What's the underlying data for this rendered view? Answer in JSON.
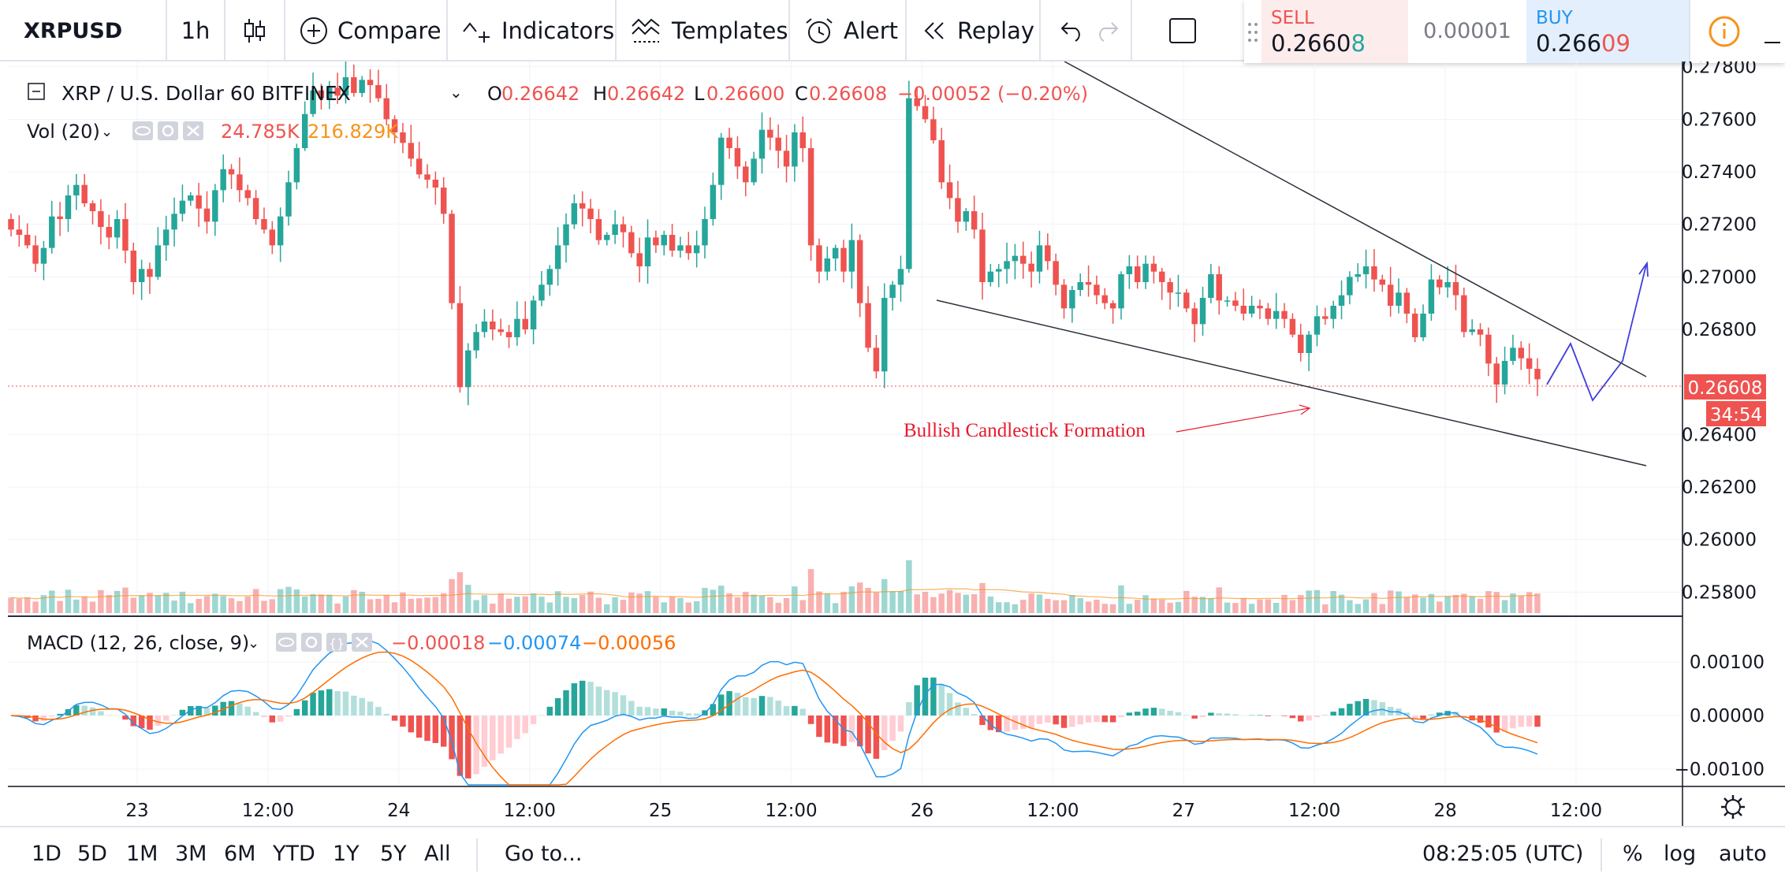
{
  "toolbar": {
    "symbol": "XRPUSD",
    "interval": "1h",
    "compare": "Compare",
    "indicators": "Indicators",
    "templates": "Templates",
    "alert": "Alert",
    "replay": "Replay"
  },
  "trade": {
    "sell_label": "SELL",
    "sell_main": "0.2660",
    "sell_last": "8",
    "spread": "0.00001",
    "buy_label": "BUY",
    "buy_main": "0.266",
    "buy_last": "09"
  },
  "legend": {
    "title": "XRP / U.S. Dollar  60  BITFINEX",
    "o_label": "O",
    "o": "0.26642",
    "h_label": "H",
    "h": "0.26642",
    "l_label": "L",
    "l": "0.26600",
    "c_label": "C",
    "c": "0.26608",
    "change": "−0.00052 (−0.20%)",
    "vol_label": "Vol (20)",
    "vol_value": "24.785K",
    "vol_ma": "216.829K",
    "macd_label": "MACD (12, 26, close, 9)",
    "macd_hist": "−0.00018",
    "macd_line": "−0.00074",
    "macd_signal": "−0.00056"
  },
  "price_axis": [
    "0.27800",
    "0.27600",
    "0.27400",
    "0.27200",
    "0.27000",
    "0.26800",
    "0.26400",
    "0.26200",
    "0.26000",
    "0.25800"
  ],
  "macd_axis": [
    "0.00100",
    "0.00000",
    "−0.00100"
  ],
  "time_axis": [
    "23",
    "12:00",
    "24",
    "12:00",
    "25",
    "12:00",
    "26",
    "12:00",
    "27",
    "12:00",
    "28",
    "12:00"
  ],
  "current_price": "0.26608",
  "countdown": "34:54",
  "annotation": "Bullish Candlestick Formation",
  "bottom": {
    "ranges": [
      "1D",
      "5D",
      "1M",
      "3M",
      "6M",
      "YTD",
      "1Y",
      "5Y",
      "All"
    ],
    "goto": "Go to...",
    "clock": "08:25:05 (UTC)",
    "percent": "%",
    "log": "log",
    "auto": "auto"
  },
  "colors": {
    "up": "#26a69a",
    "down": "#ef5350",
    "macd": "#2196f3",
    "signal": "#ff6d00",
    "annotation": "#e8192c",
    "projection": "#3f3fdc"
  },
  "chart_data": {
    "type": "candlestick",
    "symbol": "XRPUSD",
    "exchange": "BITFINEX",
    "interval": "60",
    "y_range": [
      0.2572,
      0.2782
    ],
    "x": [
      "23",
      "12:00",
      "24",
      "12:00",
      "25",
      "12:00",
      "26",
      "12:00",
      "27",
      "12:00",
      "28",
      "12:00"
    ],
    "closes": [
      0.2718,
      0.2716,
      0.2712,
      0.2705,
      0.2711,
      0.2723,
      0.2722,
      0.2731,
      0.2735,
      0.2728,
      0.2725,
      0.2719,
      0.2715,
      0.2722,
      0.271,
      0.2698,
      0.2703,
      0.27,
      0.2712,
      0.2718,
      0.2724,
      0.2729,
      0.2731,
      0.2726,
      0.2721,
      0.2733,
      0.2741,
      0.2739,
      0.2733,
      0.273,
      0.2722,
      0.2718,
      0.2712,
      0.2723,
      0.2736,
      0.2749,
      0.2762,
      0.2771,
      0.2768,
      0.2772,
      0.2769,
      0.2776,
      0.277,
      0.2775,
      0.2773,
      0.2768,
      0.276,
      0.2755,
      0.2751,
      0.2745,
      0.2739,
      0.2737,
      0.2734,
      0.2724,
      0.269,
      0.2658,
      0.2672,
      0.2679,
      0.2683,
      0.268,
      0.2679,
      0.2677,
      0.2684,
      0.268,
      0.2691,
      0.2697,
      0.2703,
      0.2712,
      0.272,
      0.2728,
      0.2726,
      0.2722,
      0.2714,
      0.2716,
      0.272,
      0.2717,
      0.2709,
      0.2704,
      0.2715,
      0.2712,
      0.2716,
      0.271,
      0.2712,
      0.2709,
      0.2712,
      0.2722,
      0.2735,
      0.2753,
      0.2749,
      0.2742,
      0.2736,
      0.2745,
      0.2756,
      0.2753,
      0.2748,
      0.2742,
      0.2755,
      0.2749,
      0.2712,
      0.2702,
      0.2707,
      0.2711,
      0.2702,
      0.2714,
      0.269,
      0.2673,
      0.2664,
      0.2692,
      0.2697,
      0.2703,
      0.2768,
      0.2765,
      0.276,
      0.2752,
      0.2736,
      0.273,
      0.2721,
      0.2725,
      0.2718,
      0.2698,
      0.2702,
      0.2703,
      0.2706,
      0.2708,
      0.2705,
      0.2702,
      0.2712,
      0.2706,
      0.2697,
      0.2688,
      0.2695,
      0.2698,
      0.2697,
      0.2693,
      0.269,
      0.2688,
      0.2701,
      0.2704,
      0.2698,
      0.2705,
      0.2702,
      0.2698,
      0.2694,
      0.2694,
      0.2688,
      0.2682,
      0.2692,
      0.2701,
      0.2691,
      0.2691,
      0.2689,
      0.2686,
      0.2689,
      0.2688,
      0.2684,
      0.2687,
      0.2684,
      0.2678,
      0.2671,
      0.2678,
      0.2685,
      0.2684,
      0.2689,
      0.2693,
      0.27,
      0.2701,
      0.2704,
      0.2699,
      0.2697,
      0.2689,
      0.2694,
      0.2686,
      0.2677,
      0.2686,
      0.2699,
      0.2696,
      0.2698,
      0.2693,
      0.2679,
      0.268,
      0.2678,
      0.2667,
      0.2659,
      0.2668,
      0.2673,
      0.2669,
      0.2665,
      0.2661
    ]
  }
}
